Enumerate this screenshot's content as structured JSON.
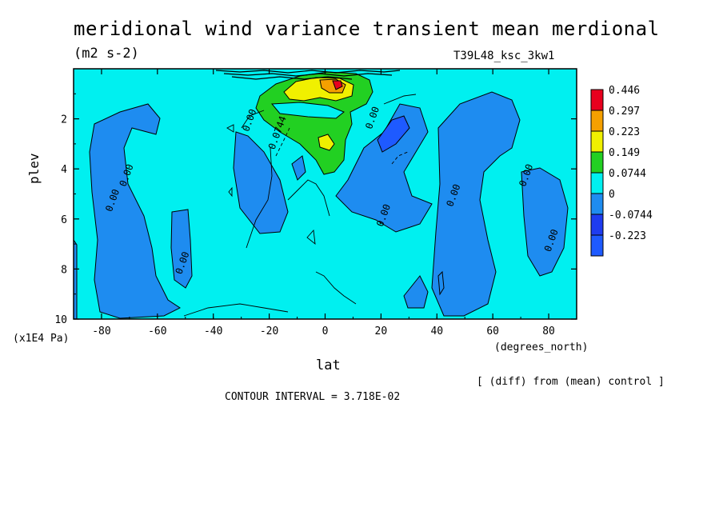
{
  "title": "meridional wind variance transient mean merdional",
  "units": "(m2 s-2)",
  "run": "T39L48_ksc_3kw1",
  "ylabel": "plev",
  "yunit": "(x1E4 Pa)",
  "xlabel": "lat",
  "xunit": "(degrees_north)",
  "diff_note": "[ (diff) from (mean) control ]",
  "contour_interval": "CONTOUR INTERVAL = 3.718E-02",
  "chart_data": {
    "type": "heatmap",
    "title": "meridional wind variance transient mean merdional",
    "units": "(m2 s-2)",
    "xlabel": "lat",
    "ylabel": "plev",
    "xlim": [
      -90,
      90
    ],
    "ylim": [
      10,
      0
    ],
    "x_ticks": [
      -80,
      -60,
      -40,
      -20,
      0,
      20,
      40,
      60,
      80
    ],
    "x_tick_labels": [
      "-80",
      "-60",
      "-40",
      "-20",
      "0",
      "20",
      "40",
      "60",
      "80"
    ],
    "y_ticks": [
      2,
      4,
      6,
      8,
      10
    ],
    "y_tick_labels": [
      "2",
      "4",
      "6",
      "8",
      "10"
    ],
    "colorbar": {
      "levels": [
        "0.446",
        "0.297",
        "0.223",
        "0.149",
        "0.0744",
        "0",
        "-0.0744",
        "-0.223"
      ],
      "colors": [
        "#e8001e",
        "#f5a000",
        "#f0f000",
        "#22d022",
        "#00f0f0",
        "#1e8cf0",
        "#1e3cf0",
        "#1e5aff"
      ]
    },
    "contour_labels": [
      {
        "text": "0.00",
        "lat": -70,
        "plev": 4.3
      },
      {
        "text": "0.00",
        "lat": -75,
        "plev": 5.3
      },
      {
        "text": "0.00",
        "lat": -50,
        "plev": 7.8
      },
      {
        "text": "0.00",
        "lat": -26,
        "plev": 2.1
      },
      {
        "text": "0.0744",
        "lat": -16,
        "plev": 2.6
      },
      {
        "text": "0.00",
        "lat": 18,
        "plev": 2.0
      },
      {
        "text": "0.00",
        "lat": 22,
        "plev": 5.9
      },
      {
        "text": "0.00",
        "lat": 47,
        "plev": 5.1
      },
      {
        "text": "0.00",
        "lat": 73,
        "plev": 4.3
      },
      {
        "text": "0.00",
        "lat": 82,
        "plev": 6.9
      }
    ],
    "background_value_color": "#00f0f0",
    "grid": false
  }
}
